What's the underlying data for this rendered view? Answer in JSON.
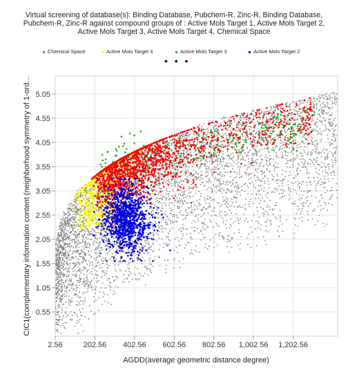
{
  "chart_data": {
    "type": "scatter",
    "title_lines": [
      "Virtual screening of database(s):  Binding Database, Pubchem-R, Zinc-R, Binding Database,",
      "Pubchem-R, Zinc-R against compound groups of :  Active Mols Target 1, Active Mols Target 2,",
      "Active Mols Target 3, Active Mols Target 4, Chemical Space"
    ],
    "xlabel": "AGDD(average geometric distance degree)",
    "ylabel": "CIC1(complementary information content (neighborhood symmetry of 1-ord...",
    "x_ticks": [
      "2.56",
      "202.56",
      "402.56",
      "602.56",
      "802.56",
      "1,002.56",
      "1,202.56"
    ],
    "y_ticks": [
      "0.55",
      "1.05",
      "1.55",
      "2.05",
      "2.55",
      "3.05",
      "3.55",
      "4.05",
      "4.55",
      "5.05"
    ],
    "x_tick_values": [
      2.56,
      202.56,
      402.56,
      602.56,
      802.56,
      1002.56,
      1202.56
    ],
    "y_tick_values": [
      0.55,
      1.05,
      1.55,
      2.05,
      2.55,
      3.05,
      3.55,
      4.05,
      4.55,
      5.05
    ],
    "xlim": [
      2.56,
      1427
    ],
    "ylim": [
      0.05,
      5.42
    ],
    "grid": true,
    "legend_position": "top",
    "legend_more_indicator": "• • •",
    "series": [
      {
        "name": "Chemical Space",
        "color": "#7f7f7f",
        "x_range": [
          2.56,
          1427
        ],
        "y_range": [
          0.05,
          5.3
        ]
      },
      {
        "name": "Active Mols Target 4",
        "color": "#ffff00",
        "x_range": [
          60,
          700
        ],
        "y_range": [
          2.0,
          4.2
        ]
      },
      {
        "name": "Active Mols Target 3",
        "color": "#22aa22",
        "x_range": [
          230,
          1350
        ],
        "y_range": [
          3.4,
          4.9
        ]
      },
      {
        "name": "Active Mols Target 2",
        "color": "#0000dd",
        "x_range": [
          250,
          620
        ],
        "y_range": [
          1.7,
          3.3
        ]
      },
      {
        "name": "Active Mols Target 1",
        "color": "#ff0000",
        "x_range": [
          140,
          1320
        ],
        "y_range": [
          2.5,
          4.9
        ]
      }
    ]
  }
}
